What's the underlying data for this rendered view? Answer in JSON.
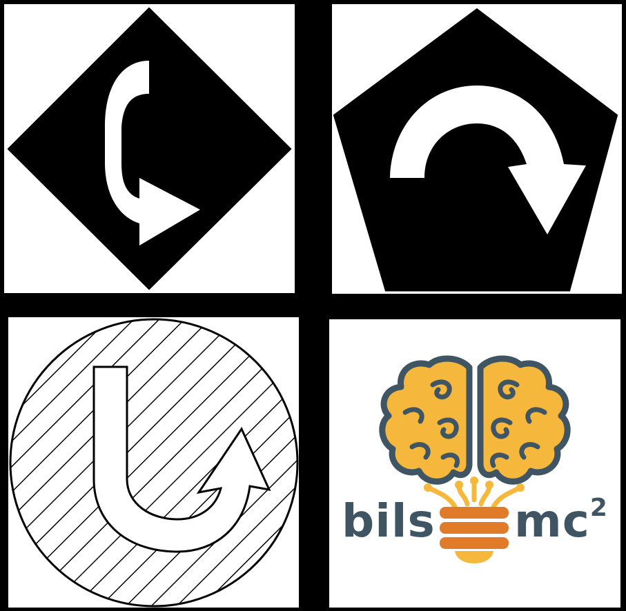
{
  "panels": [
    {
      "name": "diamond-curve-right-sign",
      "shape": "diamond",
      "arrow": "curve-right-icon"
    },
    {
      "name": "pentagon-u-turn-sign",
      "shape": "pentagon",
      "arrow": "u-turn-icon"
    },
    {
      "name": "hatched-circle-u-turn-sign",
      "shape": "circle",
      "fill": "diagonal-hatch",
      "arrow": "u-turn-up-icon"
    },
    {
      "name": "bilsmc2-logo",
      "shape": "square",
      "icon": "brain-lightbulb-icon"
    }
  ],
  "logo": {
    "text_left": "bils",
    "text_right": "mc",
    "superscript": "2"
  },
  "colors": {
    "background": "#000000",
    "panel": "#ffffff",
    "brain": "#f5b83d",
    "brain_outline": "#3f5563",
    "coil": "#e07b2a",
    "logo_text": "#3f5563"
  }
}
